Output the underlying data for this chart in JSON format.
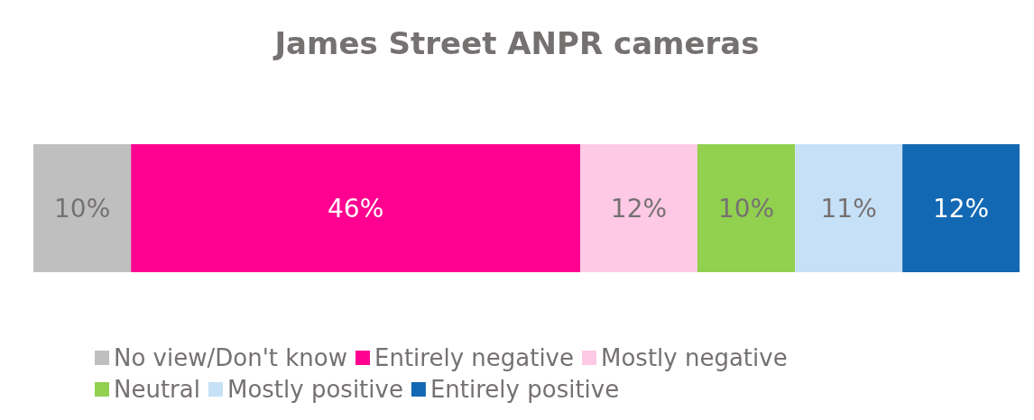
{
  "chart_data": {
    "type": "bar",
    "title": "James Street ANPR cameras",
    "orientation": "horizontal",
    "stacked": true,
    "legend": "bottom",
    "categories": [
      null
    ],
    "series": [
      {
        "name": "No view/Don't know",
        "color": "#bfbfbf",
        "values": [
          10
        ],
        "value_labels": [
          "10%"
        ]
      },
      {
        "name": "Entirely negative",
        "color": "#ff0090",
        "values": [
          46
        ],
        "value_labels": [
          "46%"
        ]
      },
      {
        "name": "Mostly negative",
        "color": "#fdc9e5",
        "values": [
          12
        ],
        "value_labels": [
          "12%"
        ]
      },
      {
        "name": "Neutral",
        "color": "#92d050",
        "values": [
          10
        ],
        "value_labels": [
          "10%"
        ]
      },
      {
        "name": "Mostly positive",
        "color": "#c5e0f7",
        "values": [
          11
        ],
        "value_labels": [
          "11%"
        ]
      },
      {
        "name": "Entirely positive",
        "color": "#1368b3",
        "values": [
          12
        ],
        "value_labels": [
          "12%"
        ]
      }
    ]
  }
}
